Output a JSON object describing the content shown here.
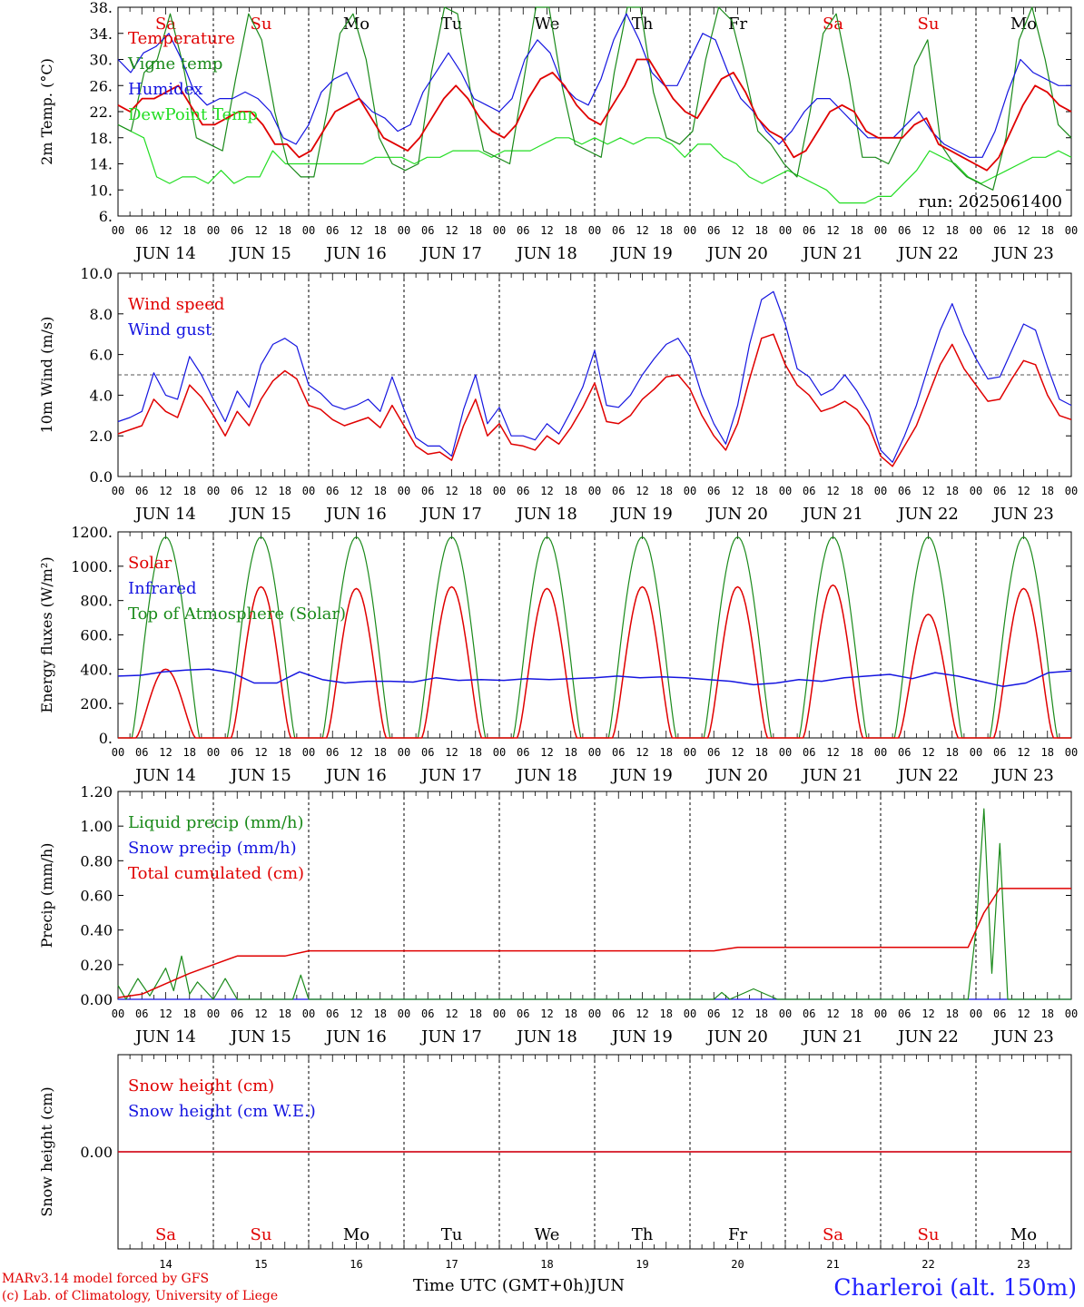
{
  "colors": {
    "red": "#e00000",
    "green": "#1a8a1a",
    "blue": "#1515e0",
    "light_green": "#22dd22",
    "axis": "#000000"
  },
  "hour_ticks": [
    "00",
    "06",
    "12",
    "18"
  ],
  "last_tick": "00",
  "dates": [
    "JUN 14",
    "JUN 15",
    "JUN 16",
    "JUN 17",
    "JUN 18",
    "JUN 19",
    "JUN 20",
    "JUN 21",
    "JUN 22",
    "JUN 23"
  ],
  "weekdays": [
    {
      "label": "Sa",
      "color": "#e00000"
    },
    {
      "label": "Su",
      "color": "#e00000"
    },
    {
      "label": "Mo",
      "color": "#000000"
    },
    {
      "label": "Tu",
      "color": "#000000"
    },
    {
      "label": "We",
      "color": "#000000"
    },
    {
      "label": "Th",
      "color": "#000000"
    },
    {
      "label": "Fr",
      "color": "#000000"
    },
    {
      "label": "Sa",
      "color": "#e00000"
    },
    {
      "label": "Su",
      "color": "#e00000"
    },
    {
      "label": "Mo",
      "color": "#000000"
    }
  ],
  "day_numbers": [
    "14",
    "15",
    "16",
    "17",
    "18",
    "19",
    "20",
    "21",
    "22",
    "23"
  ],
  "footer": {
    "credit1": "MARv3.14 model forced by GFS",
    "credit2": "(c) Lab. of Climatology, University of Liege",
    "x_title": "Time UTC (GMT+0h)",
    "month": "JUN",
    "station": "Charleroi (alt. 150m)"
  },
  "chart_data": [
    {
      "type": "line",
      "ylabel": "2m Temp. (°C)",
      "ylim": [
        6,
        38
      ],
      "yticks": [
        "6.",
        "10.",
        "14.",
        "18.",
        "22.",
        "26.",
        "30.",
        "34.",
        "38."
      ],
      "annotation": "run: 2025061400",
      "x_hours_step": 6,
      "series": [
        {
          "name": "Temperature",
          "color": "#e00000",
          "values": [
            23,
            22,
            24,
            24,
            25,
            26,
            23,
            20,
            20,
            21,
            22,
            22,
            20,
            17,
            17,
            15,
            16,
            19,
            22,
            23,
            24,
            21,
            18,
            17,
            16,
            18,
            21,
            24,
            26,
            24,
            21,
            19,
            18,
            20,
            24,
            27,
            28,
            26,
            23,
            21,
            20,
            23,
            26,
            30,
            30,
            27,
            24,
            22,
            21,
            24,
            27,
            28,
            25,
            21,
            19,
            18,
            15,
            16,
            19,
            22,
            23,
            22,
            19,
            18,
            18,
            18,
            20,
            21,
            17,
            16,
            15,
            14,
            13,
            15,
            19,
            23,
            26,
            25,
            23,
            22
          ]
        },
        {
          "name": "Vigne temp",
          "color": "#1a8a1a",
          "values": [
            20,
            19,
            28,
            30,
            37,
            29,
            18,
            17,
            16,
            27,
            37,
            33,
            22,
            14,
            12,
            12,
            22,
            34,
            37,
            30,
            18,
            14,
            13,
            14,
            28,
            38,
            37,
            25,
            16,
            15,
            14,
            26,
            38,
            38,
            26,
            17,
            16,
            15,
            28,
            38,
            38,
            25,
            18,
            17,
            19,
            30,
            38,
            36,
            28,
            19,
            17,
            14,
            12,
            22,
            34,
            37,
            27,
            15,
            15,
            14,
            18,
            29,
            33,
            17,
            14,
            12,
            11,
            10,
            18,
            33,
            38,
            30,
            20,
            18
          ]
        },
        {
          "name": "Humidex",
          "color": "#1515e0",
          "values": [
            30,
            28,
            31,
            32,
            34,
            30,
            25,
            23,
            24,
            24,
            25,
            24,
            22,
            18,
            17,
            20,
            25,
            27,
            28,
            24,
            22,
            21,
            19,
            20,
            25,
            28,
            31,
            28,
            24,
            23,
            22,
            24,
            30,
            33,
            31,
            26,
            24,
            23,
            27,
            33,
            37,
            33,
            28,
            26,
            26,
            30,
            34,
            33,
            28,
            24,
            22,
            19,
            17,
            19,
            22,
            24,
            24,
            22,
            20,
            18,
            18,
            18,
            20,
            22,
            19,
            17,
            16,
            15,
            15,
            19,
            25,
            30,
            28,
            27,
            26,
            26
          ]
        },
        {
          "name": "DewPoint Temp",
          "color": "#22dd22",
          "values": [
            20,
            19,
            18,
            12,
            11,
            12,
            12,
            11,
            13,
            11,
            12,
            12,
            16,
            14,
            14,
            14,
            14,
            14,
            14,
            14,
            15,
            15,
            15,
            14,
            15,
            15,
            16,
            16,
            16,
            15,
            16,
            16,
            16,
            17,
            18,
            18,
            17,
            18,
            17,
            18,
            17,
            18,
            18,
            17,
            15,
            17,
            17,
            15,
            14,
            12,
            11,
            12,
            13,
            12,
            11,
            10,
            8,
            8,
            8,
            9,
            9,
            11,
            13,
            16,
            15,
            14,
            12,
            11,
            12,
            13,
            14,
            15,
            15,
            16,
            15
          ]
        }
      ]
    },
    {
      "type": "line",
      "ylabel": "10m Wind (m/s)",
      "ylim": [
        0,
        10
      ],
      "yticks": [
        "0.0",
        "2.0",
        "4.0",
        "6.0",
        "8.0",
        "10.0"
      ],
      "reference_line": 5,
      "series": [
        {
          "name": "Wind speed",
          "color": "#e00000",
          "values": [
            2.1,
            2.3,
            2.5,
            3.8,
            3.2,
            2.9,
            4.5,
            3.9,
            3.0,
            2.0,
            3.2,
            2.5,
            3.8,
            4.7,
            5.2,
            4.8,
            3.5,
            3.3,
            2.8,
            2.5,
            2.7,
            2.9,
            2.4,
            3.5,
            2.5,
            1.5,
            1.1,
            1.2,
            0.8,
            2.5,
            3.8,
            2.0,
            2.6,
            1.6,
            1.5,
            1.3,
            2.0,
            1.6,
            2.4,
            3.4,
            4.6,
            2.7,
            2.6,
            3.0,
            3.8,
            4.3,
            4.9,
            5.0,
            4.3,
            3.0,
            2.0,
            1.3,
            2.6,
            4.8,
            6.8,
            7.0,
            5.5,
            4.5,
            4.0,
            3.2,
            3.4,
            3.7,
            3.3,
            2.5,
            1.0,
            0.5,
            1.5,
            2.5,
            4.0,
            5.5,
            6.5,
            5.3,
            4.5,
            3.7,
            3.8,
            4.8,
            5.7,
            5.5,
            4.0,
            3.0,
            2.8
          ]
        },
        {
          "name": "Wind gust",
          "color": "#1515e0",
          "values": [
            2.7,
            2.9,
            3.2,
            5.1,
            4.0,
            3.8,
            5.9,
            5.0,
            3.8,
            2.7,
            4.2,
            3.4,
            5.5,
            6.5,
            6.8,
            6.4,
            4.5,
            4.1,
            3.5,
            3.3,
            3.5,
            3.8,
            3.2,
            4.9,
            3.3,
            1.9,
            1.5,
            1.5,
            1.0,
            3.3,
            5.0,
            2.6,
            3.4,
            2.0,
            2.0,
            1.8,
            2.6,
            2.1,
            3.2,
            4.4,
            6.2,
            3.5,
            3.4,
            4.0,
            5.0,
            5.8,
            6.5,
            6.8,
            5.9,
            4.0,
            2.6,
            1.6,
            3.5,
            6.5,
            8.7,
            9.1,
            7.5,
            5.3,
            4.9,
            4.0,
            4.3,
            5.0,
            4.2,
            3.2,
            1.3,
            0.7,
            2.0,
            3.5,
            5.4,
            7.2,
            8.5,
            7.0,
            5.8,
            4.8,
            4.9,
            6.2,
            7.5,
            7.2,
            5.4,
            3.8,
            3.5
          ]
        }
      ]
    },
    {
      "type": "line",
      "ylabel": "Energy fluxes (W/m²)",
      "ylim": [
        0,
        1200
      ],
      "yticks": [
        "0.",
        "200.",
        "400.",
        "600.",
        "800.",
        "1000.",
        "1200."
      ],
      "series": [
        {
          "name": "Solar",
          "color": "#e00000",
          "daily_peak": [
            400,
            880,
            870,
            880,
            870,
            880,
            880,
            890,
            720,
            870
          ]
        },
        {
          "name": "Infrared",
          "color": "#1515e0",
          "values": [
            360,
            365,
            385,
            395,
            400,
            380,
            320,
            320,
            385,
            340,
            320,
            330,
            330,
            325,
            350,
            335,
            340,
            335,
            345,
            340,
            345,
            350,
            360,
            350,
            355,
            350,
            340,
            330,
            310,
            320,
            340,
            330,
            350,
            360,
            370,
            345,
            380,
            360,
            330,
            300,
            320,
            380,
            390
          ]
        },
        {
          "name": "Top of Atmosphere (Solar)",
          "color": "#1a8a1a",
          "daily_peak": [
            1170,
            1170,
            1170,
            1170,
            1170,
            1170,
            1170,
            1170,
            1170,
            1170
          ]
        }
      ]
    },
    {
      "type": "line",
      "ylabel": "Precip (mm/h)",
      "ylim": [
        0,
        1.2
      ],
      "yticks": [
        "0.00",
        "0.20",
        "0.40",
        "0.60",
        "0.80",
        "1.00",
        "1.20"
      ],
      "series": [
        {
          "name": "Liquid precip (mm/h)",
          "color": "#1a8a1a",
          "points": [
            [
              0,
              0.08
            ],
            [
              2,
              0
            ],
            [
              5,
              0.12
            ],
            [
              8,
              0.02
            ],
            [
              12,
              0.18
            ],
            [
              14,
              0.05
            ],
            [
              16,
              0.25
            ],
            [
              18,
              0.03
            ],
            [
              20,
              0.1
            ],
            [
              24,
              0
            ],
            [
              27,
              0.12
            ],
            [
              30,
              0
            ],
            [
              44,
              0
            ],
            [
              46,
              0.14
            ],
            [
              48,
              0
            ],
            [
              150,
              0
            ],
            [
              152,
              0.04
            ],
            [
              154,
              0
            ],
            [
              160,
              0.06
            ],
            [
              166,
              0
            ],
            [
              214,
              0
            ],
            [
              216,
              0.4
            ],
            [
              218,
              1.1
            ],
            [
              220,
              0.15
            ],
            [
              222,
              0.9
            ],
            [
              224,
              0
            ],
            [
              240,
              0
            ]
          ]
        },
        {
          "name": "Snow precip (mm/h)",
          "color": "#1515e0",
          "points": [
            [
              0,
              0
            ],
            [
              240,
              0
            ]
          ]
        },
        {
          "name": "Total cumulated (cm)",
          "color": "#e00000",
          "points": [
            [
              0,
              0.01
            ],
            [
              6,
              0.03
            ],
            [
              12,
              0.09
            ],
            [
              18,
              0.15
            ],
            [
              24,
              0.2
            ],
            [
              30,
              0.25
            ],
            [
              42,
              0.25
            ],
            [
              48,
              0.28
            ],
            [
              150,
              0.28
            ],
            [
              156,
              0.3
            ],
            [
              214,
              0.3
            ],
            [
              218,
              0.5
            ],
            [
              222,
              0.64
            ],
            [
              240,
              0.64
            ]
          ]
        }
      ]
    },
    {
      "type": "line",
      "ylabel": "Snow height (cm)",
      "yticks": [
        "0.00"
      ],
      "series": [
        {
          "name": "Snow height (cm)",
          "color": "#e00000",
          "points": [
            [
              0,
              0
            ],
            [
              240,
              0
            ]
          ]
        },
        {
          "name": "Snow height (cm W.E.)",
          "color": "#1515e0",
          "points": [
            [
              0,
              0
            ],
            [
              240,
              0
            ]
          ]
        }
      ]
    }
  ]
}
